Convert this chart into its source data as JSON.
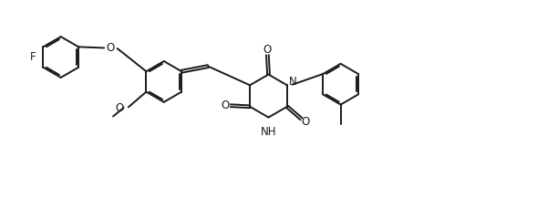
{
  "bg_color": "#ffffff",
  "line_color": "#1a1a1a",
  "line_width": 1.4,
  "font_size": 8.5,
  "figsize": [
    5.89,
    2.18
  ],
  "dpi": 100,
  "xlim": [
    0,
    10.5
  ],
  "ylim": [
    0,
    3.7
  ]
}
